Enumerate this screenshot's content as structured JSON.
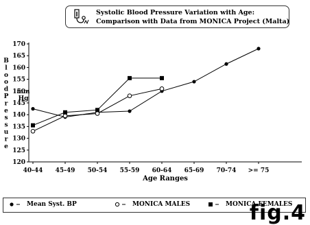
{
  "title": {
    "line1": "Systolic Blood Pressure Variation with Age:",
    "line2": "Comparison with Data from MONICA Project  (Malta)"
  },
  "fig_label": "fig.4",
  "legend": {
    "mean": "Mean Syst. BP",
    "males": "MONICA MALES",
    "females": "MONICA FEMALES"
  },
  "chart_data": {
    "type": "line",
    "title": "Systolic Blood Pressure Variation with Age: Comparison with Data from MONICA Project  (Malta)",
    "xlabel": "Age Ranges",
    "ylabel": "Blood Pressure",
    "yunit": "mmHg",
    "categories": [
      "40-44",
      "45-49",
      "50-54",
      "55-59",
      "60-64",
      "65-69",
      "70-74",
      ">= 75"
    ],
    "ylim": [
      120,
      170
    ],
    "yticks": [
      120,
      125,
      130,
      135,
      140,
      145,
      150,
      155,
      160,
      165,
      170
    ],
    "grid": false,
    "legend_position": "bottom",
    "series": [
      {
        "name": "Mean Syst. BP",
        "marker": "filled-circle",
        "color": "#000000",
        "values": [
          142.5,
          139,
          141,
          141.5,
          150,
          154,
          161.5,
          168
        ]
      },
      {
        "name": "MONICA MALES",
        "marker": "open-circle",
        "color": "#000000",
        "values": [
          133,
          139.5,
          140.5,
          148,
          151,
          null,
          null,
          null
        ]
      },
      {
        "name": "MONICA FEMALES",
        "marker": "filled-square",
        "color": "#000000",
        "values": [
          135.5,
          141,
          142,
          155.5,
          155.5,
          null,
          null,
          null
        ]
      }
    ]
  }
}
